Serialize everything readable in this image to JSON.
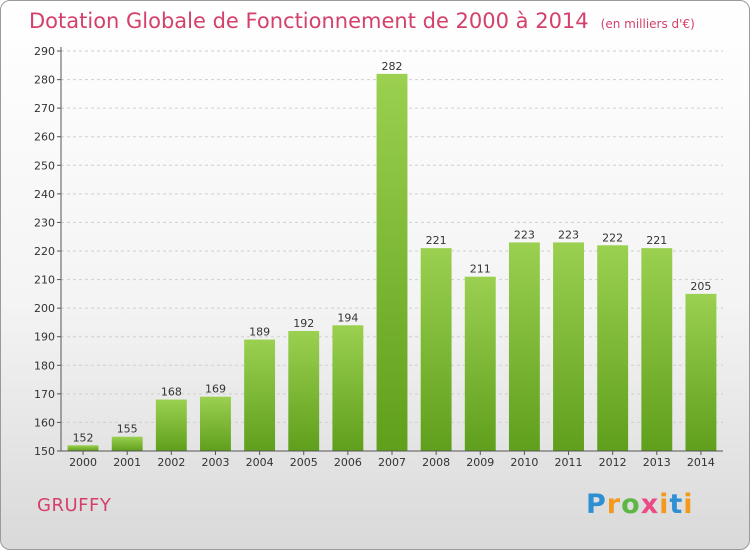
{
  "header": {
    "title": "Dotation Globale de Fonctionnement de 2000 à 2014",
    "unit": "(en milliers d'€)"
  },
  "footer": {
    "place": "GRUFFY",
    "logo_letters": [
      "P",
      "r",
      "o",
      "x",
      "i",
      "t",
      "i"
    ]
  },
  "colors": {
    "title": "#d4406a",
    "bar_top": "#9bd050",
    "bar_bottom": "#5f9f1c"
  },
  "chart_data": {
    "type": "bar",
    "title": "Dotation Globale de Fonctionnement de 2000 à 2014",
    "subtitle": "(en milliers d'€)",
    "xlabel": "",
    "ylabel": "",
    "categories": [
      "2000",
      "2001",
      "2002",
      "2003",
      "2004",
      "2005",
      "2006",
      "2007",
      "2008",
      "2009",
      "2010",
      "2011",
      "2012",
      "2013",
      "2014"
    ],
    "values": [
      152,
      155,
      168,
      169,
      189,
      192,
      194,
      282,
      221,
      211,
      223,
      223,
      222,
      221,
      205
    ],
    "ylim": [
      150,
      290
    ],
    "yticks": [
      150,
      160,
      170,
      180,
      190,
      200,
      210,
      220,
      230,
      240,
      250,
      260,
      270,
      280,
      290
    ],
    "grid": true,
    "legend": "none"
  }
}
